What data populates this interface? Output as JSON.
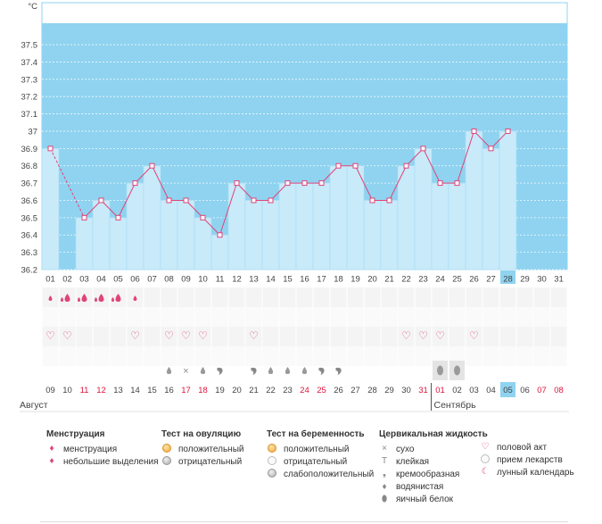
{
  "chart_data": {
    "type": "line",
    "title": "",
    "ylabel": "°C",
    "ylim": [
      36.2,
      37.6
    ],
    "yticks": [
      "37.5",
      "37.4",
      "37.3",
      "37.2",
      "37.1",
      "37",
      "36.9",
      "36.8",
      "36.7",
      "36.6",
      "36.5",
      "36.4",
      "36.3",
      "36.2"
    ],
    "cycle_days": [
      "01",
      "02",
      "03",
      "04",
      "05",
      "06",
      "07",
      "08",
      "09",
      "10",
      "11",
      "12",
      "13",
      "14",
      "15",
      "16",
      "17",
      "18",
      "19",
      "20",
      "21",
      "22",
      "23",
      "24",
      "25",
      "26",
      "27",
      "28",
      "29",
      "30",
      "31"
    ],
    "temperatures": [
      36.9,
      null,
      36.5,
      36.6,
      36.5,
      36.7,
      36.8,
      36.6,
      36.6,
      36.5,
      36.4,
      36.7,
      36.6,
      36.6,
      36.7,
      36.7,
      36.7,
      36.8,
      36.8,
      36.6,
      36.6,
      36.8,
      36.9,
      36.7,
      36.7,
      37.0,
      36.9,
      37.0,
      null,
      null,
      null
    ],
    "current_cycle_day": "28",
    "calendar_dates": [
      "09",
      "10",
      "11",
      "12",
      "13",
      "14",
      "15",
      "16",
      "17",
      "18",
      "19",
      "20",
      "21",
      "22",
      "23",
      "24",
      "25",
      "26",
      "27",
      "28",
      "29",
      "30",
      "31",
      "01",
      "02",
      "03",
      "04",
      "05",
      "06",
      "07",
      "08"
    ],
    "weekend_dates_index": [
      2,
      3,
      8,
      9,
      15,
      16,
      22,
      23,
      29,
      30
    ],
    "today_index": 27,
    "months": [
      "Август",
      "Сентябрь"
    ],
    "month_break_index": 23,
    "marker_rows": {
      "menstruation": [
        "light",
        "heavy",
        "heavy",
        "heavy",
        "heavy",
        "light",
        "",
        "",
        "",
        "",
        "",
        "",
        "",
        "",
        "",
        "",
        "",
        "",
        "",
        "",
        "",
        "",
        "",
        "",
        "",
        "",
        "",
        "",
        "",
        "",
        ""
      ],
      "intercourse": [
        1,
        1,
        0,
        0,
        0,
        1,
        0,
        1,
        1,
        1,
        0,
        0,
        1,
        0,
        0,
        0,
        0,
        0,
        0,
        0,
        0,
        1,
        1,
        1,
        0,
        1,
        0,
        0,
        0,
        0,
        0
      ],
      "cervical": [
        "",
        "",
        "",
        "",
        "",
        "",
        "",
        "drop",
        "dry",
        "drop",
        "creamy",
        "",
        "creamy",
        "drop",
        "drop",
        "drop",
        "creamy",
        "creamy",
        "",
        "",
        "",
        "",
        "",
        "",
        "",
        "",
        "",
        "",
        "",
        "",
        ""
      ],
      "pregnancy_test": [
        "",
        "",
        "",
        "",
        "",
        "",
        "",
        "",
        "",
        "",
        "",
        "",
        "",
        "",
        "",
        "",
        "",
        "",
        "",
        "",
        "",
        "",
        "",
        "neg",
        "neg",
        "",
        "",
        "",
        "",
        "",
        ""
      ]
    }
  },
  "legend": {
    "menstruation": {
      "title": "Менструация",
      "items": [
        "менструация",
        "небольшие выделения"
      ]
    },
    "ovulation_test": {
      "title": "Тест на овуляцию",
      "items": [
        "положительный",
        "отрицательный"
      ]
    },
    "pregnancy_test": {
      "title": "Тест на беременность",
      "items": [
        "положительный",
        "отрицательный",
        "слабоположительный"
      ]
    },
    "cervical_fluid": {
      "title": "Цервикальная жидкость",
      "items": [
        "сухо",
        "клейкая",
        "кремообразная",
        "водянистая",
        "яичный белок"
      ]
    },
    "other": {
      "items": [
        "половой акт",
        "прием лекарств",
        "лунный календарь"
      ]
    }
  },
  "colors": {
    "sky": "#8fd3f0",
    "area": "#c8eaf9",
    "line": "#e0447a",
    "weekend": "#e0143c",
    "today": "#8fd3f0"
  }
}
